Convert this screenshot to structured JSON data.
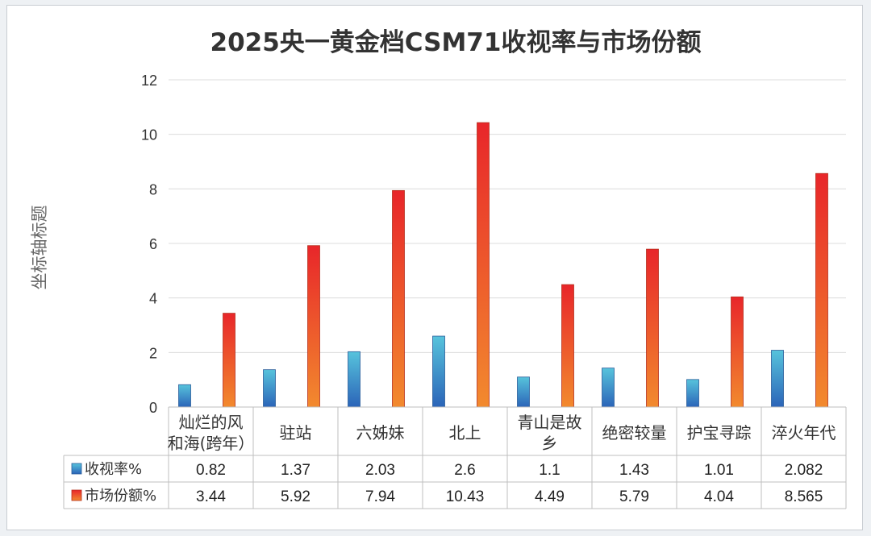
{
  "chart_data": {
    "type": "bar",
    "title": "2025央一黄金档CSM71收视率与市场份额",
    "ylabel": "坐标轴标题",
    "xlabel": "",
    "ylim": [
      0,
      12
    ],
    "yticks": [
      0,
      2,
      4,
      6,
      8,
      10,
      12
    ],
    "grid": true,
    "categories": [
      [
        "灿烂的风",
        "和海(跨年）"
      ],
      [
        "驻站"
      ],
      [
        "六姊妹"
      ],
      [
        "北上"
      ],
      [
        "青山是故",
        "乡"
      ],
      [
        "绝密较量"
      ],
      [
        "护宝寻踪"
      ],
      [
        "淬火年代"
      ]
    ],
    "series": [
      {
        "name": "收视率%",
        "values": [
          0.82,
          1.37,
          2.03,
          2.6,
          1.1,
          1.43,
          1.01,
          2.082
        ],
        "labels": [
          "0.82",
          "1.37",
          "2.03",
          "2.6",
          "1.1",
          "1.43",
          "1.01",
          "2.082"
        ],
        "color_top": "#57c3dc",
        "color_bottom": "#2b64b8",
        "stroke": "#2a5d9a"
      },
      {
        "name": "市场份额%",
        "values": [
          3.44,
          5.92,
          7.94,
          10.43,
          4.49,
          5.79,
          4.04,
          8.565
        ],
        "labels": [
          "3.44",
          "5.92",
          "7.94",
          "10.43",
          "4.49",
          "5.79",
          "4.04",
          "8.565"
        ],
        "color_top": "#e8262a",
        "color_bottom": "#f28a2e",
        "stroke": "#b5301e"
      }
    ],
    "legend": "data-table"
  }
}
